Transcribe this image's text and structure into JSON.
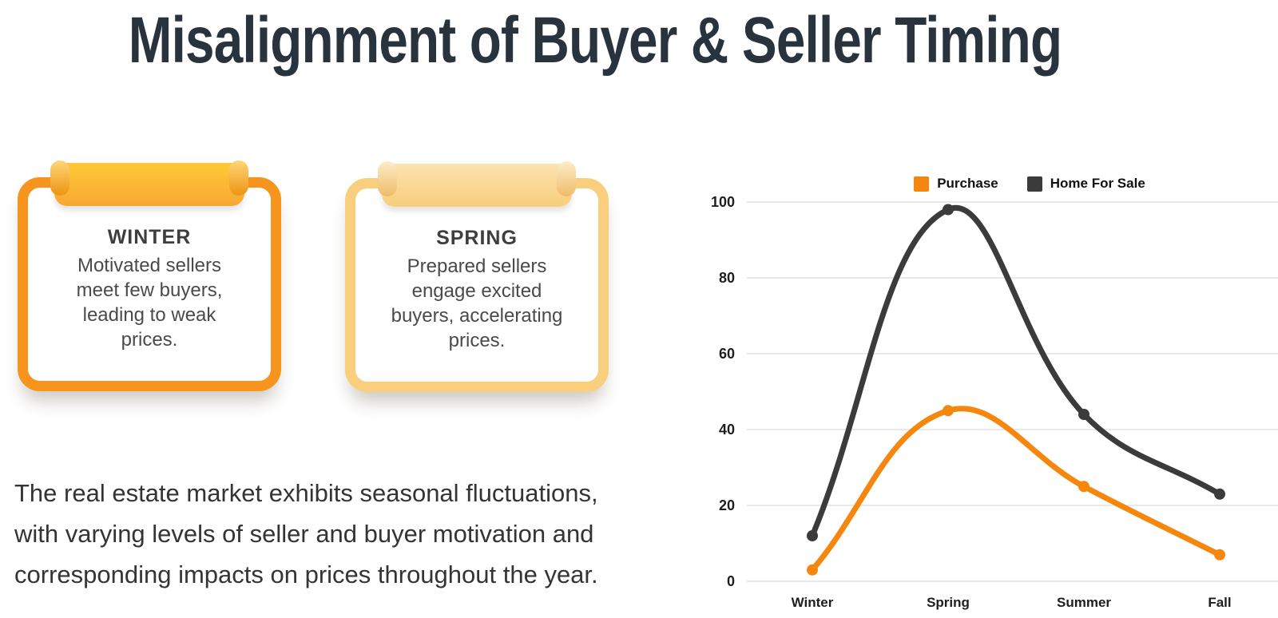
{
  "page": {
    "title": "Misalignment of Buyer & Seller Timing"
  },
  "cards": [
    {
      "title": "WINTER",
      "body_lines": [
        "Motivated sellers",
        "meet few buyers,",
        "leading to weak",
        "prices."
      ],
      "border_color": "#F7941E",
      "banner_top": "#FFC938",
      "banner_bottom": "#F8A732",
      "curl_color": "#EC9512",
      "curl_highlight": "#FFD678"
    },
    {
      "title": "SPRING",
      "body_lines": [
        "Prepared sellers",
        "engage excited",
        "buyers, accelerating",
        "prices."
      ],
      "border_color": "#F9CF7D",
      "banner_top": "#FBE2B0",
      "banner_bottom": "#F8CE7C",
      "curl_color": "#EFBC67",
      "curl_highlight": "#FDEDCA"
    }
  ],
  "paragraph_lines": [
    "The real estate market exhibits seasonal fluctuations,",
    "with varying levels of seller and buyer motivation and",
    "corresponding impacts on prices throughout the year."
  ],
  "chart_data": {
    "type": "line",
    "categories": [
      "Winter",
      "Spring",
      "Summer",
      "Fall"
    ],
    "series": [
      {
        "name": "Purchase",
        "color": "#F5870E",
        "values": [
          3,
          45,
          25,
          7
        ]
      },
      {
        "name": "Home For Sale",
        "color": "#3B3B3B",
        "values": [
          12,
          98,
          44,
          23
        ]
      }
    ],
    "title": "",
    "xlabel": "",
    "ylabel": "",
    "ylim": [
      0,
      100
    ],
    "yticks": [
      0,
      20,
      40,
      60,
      80,
      100
    ],
    "grid": true,
    "legend_position": "top",
    "grid_color": "#E2E2E2",
    "tick_color": "#1E1E1E"
  }
}
